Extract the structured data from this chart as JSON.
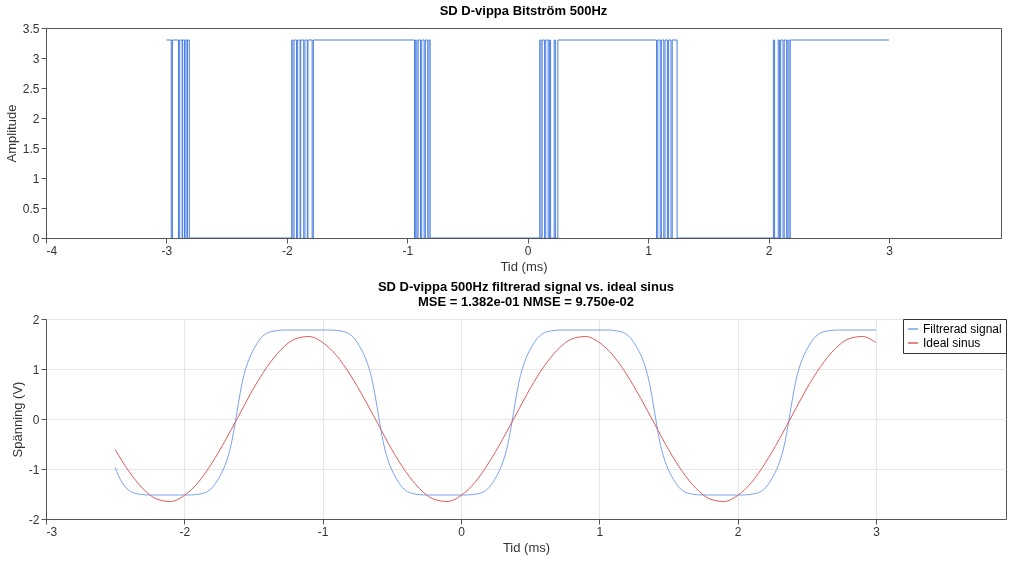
{
  "chart_data": [
    {
      "type": "step",
      "title": "SD D-vippa Bitström 500Hz",
      "xlabel": "Tid (ms)",
      "ylabel": "Amplitude",
      "color": "#4a7fe0",
      "x": [
        -3.0,
        -2.96,
        -2.95,
        -2.9,
        -2.89,
        -2.87,
        -2.865,
        -2.85,
        -2.845,
        -2.83,
        -2.825,
        -2.81,
        -1.96,
        -1.95,
        -1.94,
        -1.92,
        -1.91,
        -1.89,
        -1.885,
        -1.86,
        -1.85,
        -1.83,
        -1.825,
        -1.79,
        -1.78,
        -0.94,
        -0.93,
        -0.92,
        -0.91,
        -0.89,
        -0.88,
        -0.86,
        -0.85,
        -0.83,
        -0.82,
        -0.81,
        0.1,
        0.11,
        0.12,
        0.14,
        0.15,
        0.17,
        0.18,
        0.19,
        0.22,
        0.23,
        0.25,
        1.07,
        1.08,
        1.1,
        1.11,
        1.13,
        1.14,
        1.16,
        1.17,
        1.19,
        1.2,
        1.24,
        2.04,
        2.05,
        2.08,
        2.09,
        2.1,
        2.12,
        2.13,
        2.15,
        2.16,
        2.17,
        2.18,
        3.0
      ],
      "values": [
        3.3,
        0,
        3.3,
        0,
        3.3,
        0,
        3.3,
        0,
        3.3,
        0,
        3.3,
        0,
        3.3,
        0,
        3.3,
        0,
        3.3,
        0,
        3.3,
        0,
        3.3,
        0,
        3.3,
        0,
        3.3,
        0,
        3.3,
        0,
        3.3,
        0,
        3.3,
        0,
        3.3,
        0,
        3.3,
        0,
        3.3,
        0,
        3.3,
        0,
        3.3,
        0,
        3.3,
        0,
        3.3,
        0,
        3.3,
        0,
        3.3,
        0,
        3.3,
        0,
        3.3,
        0,
        3.3,
        0,
        3.3,
        0,
        3.3,
        0,
        3.3,
        0,
        3.3,
        0,
        3.3,
        0,
        3.3,
        0,
        3.3,
        3.3
      ],
      "xlim": [
        -4,
        3.93
      ],
      "xticks": [
        -4,
        -3,
        -2,
        -1,
        0,
        1,
        2,
        3
      ],
      "ylim": [
        0,
        3.5
      ],
      "yticks": [
        0,
        0.5,
        1,
        1.5,
        2,
        2.5,
        3,
        3.5
      ],
      "grid": false
    },
    {
      "type": "line",
      "title": "SD D-vippa 500Hz filtrerad signal vs. ideal sinus",
      "subtitle": "MSE = 1.382e-01   NMSE = 9.750e-02",
      "xlabel": "Tid (ms)",
      "ylabel": "Spänning (V)",
      "series": [
        {
          "name": "Filtrerad signal",
          "color": "#7aa3ef",
          "x": [
            -2.5,
            -2.45,
            -2.35,
            -2.25,
            -2.0,
            -1.97,
            -1.87,
            -1.77,
            -1.67,
            -1.57,
            -1.47,
            -1.37,
            -1.27,
            -0.95,
            -0.85,
            -0.75,
            -0.65,
            -0.55,
            -0.45,
            -0.35,
            -0.25,
            0.03,
            0.13,
            0.23,
            0.33,
            0.43,
            0.53,
            0.63,
            0.73,
            1.05,
            1.15,
            1.25,
            1.35,
            1.45,
            1.55,
            1.65,
            1.75,
            2.03,
            2.13,
            2.23,
            2.33,
            2.43,
            2.53,
            2.63,
            2.73,
            3.0
          ],
          "values": [
            -0.97,
            -1.27,
            -1.49,
            -1.52,
            -1.52,
            -1.52,
            -1.49,
            -1.27,
            -0.61,
            0.87,
            1.53,
            1.75,
            1.78,
            1.78,
            1.75,
            1.53,
            0.87,
            -0.61,
            -1.27,
            -1.49,
            -1.52,
            -1.52,
            -1.49,
            -1.27,
            -0.61,
            0.87,
            1.53,
            1.75,
            1.78,
            1.78,
            1.75,
            1.53,
            0.87,
            -0.61,
            -1.27,
            -1.49,
            -1.52,
            -1.52,
            -1.49,
            -1.27,
            -0.61,
            0.87,
            1.53,
            1.75,
            1.78,
            1.78
          ]
        },
        {
          "name": "Ideal sinus",
          "color": "#e05a5a",
          "x": [
            -2.5,
            -2.4,
            -2.3,
            -2.2,
            -2.1,
            -2.0,
            -1.9,
            -1.8,
            -1.7,
            -1.6,
            -1.5,
            -1.4,
            -1.3,
            -1.2,
            -1.1,
            -1.0,
            -0.9,
            -0.8,
            -0.7,
            -0.6,
            -0.5,
            -0.4,
            -0.3,
            -0.2,
            -0.1,
            0.0,
            0.1,
            0.2,
            0.3,
            0.4,
            0.5,
            0.6,
            0.7,
            0.8,
            0.9,
            1.0,
            1.1,
            1.2,
            1.3,
            1.4,
            1.5,
            1.6,
            1.7,
            1.8,
            1.9,
            2.0,
            2.1,
            2.2,
            2.3,
            2.4,
            2.5,
            2.6,
            2.7,
            2.8,
            2.9,
            3.0
          ],
          "values": [
            -0.61,
            -1.05,
            -1.39,
            -1.6,
            -1.65,
            -1.53,
            -1.27,
            -0.88,
            -0.41,
            0.1,
            0.61,
            1.05,
            1.39,
            1.6,
            1.65,
            1.53,
            1.27,
            0.88,
            0.41,
            -0.1,
            -0.61,
            -1.05,
            -1.39,
            -1.6,
            -1.65,
            -1.53,
            -1.27,
            -0.88,
            -0.41,
            0.1,
            0.61,
            1.05,
            1.39,
            1.6,
            1.65,
            1.53,
            1.27,
            0.88,
            0.41,
            -0.1,
            -0.61,
            -1.05,
            -1.39,
            -1.6,
            -1.65,
            -1.53,
            -1.27,
            -0.88,
            -0.41,
            0.1,
            0.61,
            1.05,
            1.39,
            1.6,
            1.65,
            1.53
          ]
        }
      ],
      "xlim": [
        -3,
        3.94
      ],
      "xticks": [
        -3,
        -2,
        -1,
        0,
        1,
        2,
        3
      ],
      "ylim": [
        -2,
        2
      ],
      "yticks": [
        -2,
        -1,
        0,
        1,
        2
      ],
      "grid": true,
      "legend": "top right"
    }
  ]
}
